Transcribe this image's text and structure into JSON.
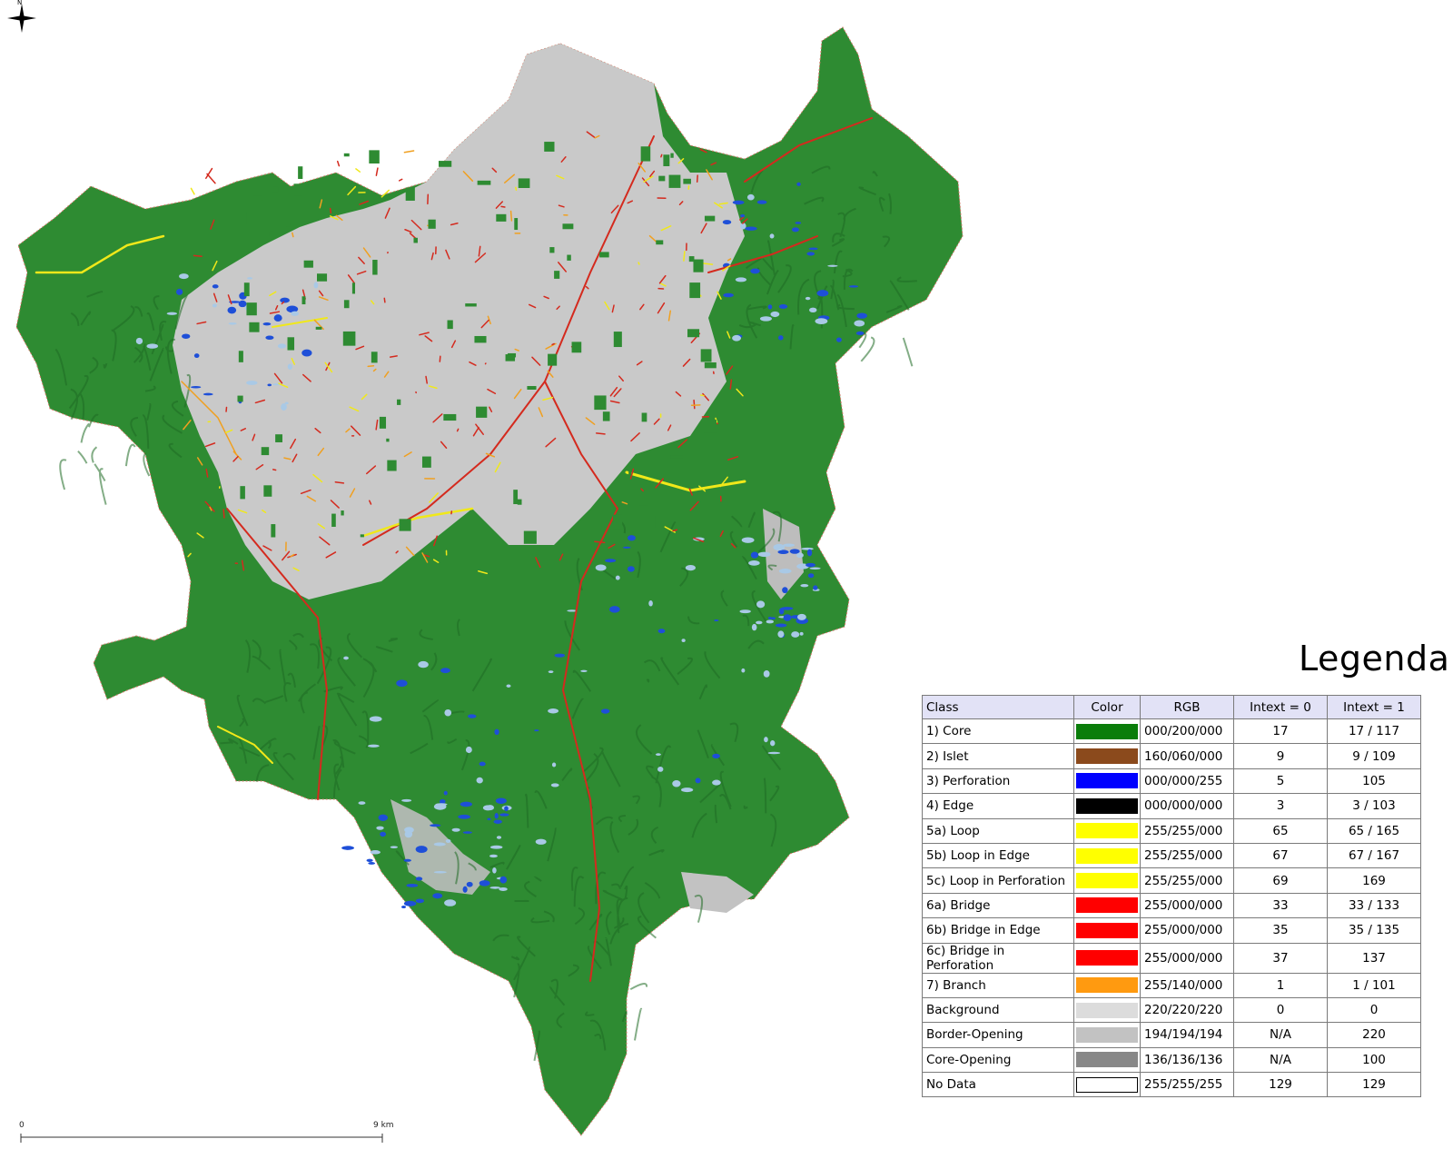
{
  "map": {
    "north_label": "N",
    "scale": {
      "start": "0",
      "end": "9 km"
    },
    "colors": {
      "core": "#2e8b32",
      "background": "#c8c8c8",
      "bridge": "#d42a1e",
      "loop": "#f0e81a",
      "branch": "#f0a020",
      "perforation": "#1e4fd8",
      "hole": "#a9c9e6"
    }
  },
  "legend": {
    "title": "Legenda",
    "headers": {
      "class": "Class",
      "color": "Color",
      "rgb": "RGB",
      "intext0": "Intext = 0",
      "intext1": "Intext = 1"
    },
    "rows": [
      {
        "class": "1)  Core",
        "color": "#00c800",
        "swatch": "#0a7d0a",
        "rgb": "000/200/000",
        "intext0": "17",
        "intext1": "17 / 117"
      },
      {
        "class": "2)  Islet",
        "color": "#a03c00",
        "swatch": "#8b4a1c",
        "rgb": "160/060/000",
        "intext0": "9",
        "intext1": "9 / 109"
      },
      {
        "class": "3)  Perforation",
        "color": "#0000ff",
        "swatch": "#0000ff",
        "rgb": "000/000/255",
        "intext0": "5",
        "intext1": "105"
      },
      {
        "class": "4)  Edge",
        "color": "#000000",
        "swatch": "#000000",
        "rgb": "000/000/000",
        "intext0": "3",
        "intext1": "3 / 103"
      },
      {
        "class": "5a) Loop",
        "color": "#ffff00",
        "swatch": "#ffff00",
        "rgb": "255/255/000",
        "intext0": "65",
        "intext1": "65 / 165"
      },
      {
        "class": "5b) Loop in Edge",
        "color": "#ffff00",
        "swatch": "#ffff00",
        "rgb": "255/255/000",
        "intext0": "67",
        "intext1": "67 / 167"
      },
      {
        "class": "5c) Loop in Perforation",
        "color": "#ffff00",
        "swatch": "#ffff00",
        "rgb": "255/255/000",
        "intext0": "69",
        "intext1": "169"
      },
      {
        "class": "6a) Bridge",
        "color": "#ff0000",
        "swatch": "#ff0000",
        "rgb": "255/000/000",
        "intext0": "33",
        "intext1": "33 / 133"
      },
      {
        "class": "6b) Bridge in Edge",
        "color": "#ff0000",
        "swatch": "#ff0000",
        "rgb": "255/000/000",
        "intext0": "35",
        "intext1": "35 / 135"
      },
      {
        "class": "6c) Bridge in Perforation",
        "color": "#ff0000",
        "swatch": "#ff0000",
        "rgb": "255/000/000",
        "intext0": "37",
        "intext1": "137"
      },
      {
        "class": "7)  Branch",
        "color": "#ff8c00",
        "swatch": "#ff9a10",
        "rgb": "255/140/000",
        "intext0": "1",
        "intext1": "1 / 101"
      },
      {
        "class": "Background",
        "color": "#dcdcdc",
        "swatch": "#dcdcdc",
        "rgb": "220/220/220",
        "intext0": "0",
        "intext1": "0"
      },
      {
        "class": "Border-Opening",
        "color": "#c2c2c2",
        "swatch": "#c2c2c2",
        "rgb": "194/194/194",
        "intext0": "N/A",
        "intext1": "220"
      },
      {
        "class": "Core-Opening",
        "color": "#888888",
        "swatch": "#888888",
        "rgb": "136/136/136",
        "intext0": "N/A",
        "intext1": "100"
      },
      {
        "class": "No Data",
        "color": "#ffffff",
        "swatch": "#ffffff",
        "rgb": "255/255/255",
        "intext0": "129",
        "intext1": "129"
      }
    ]
  }
}
